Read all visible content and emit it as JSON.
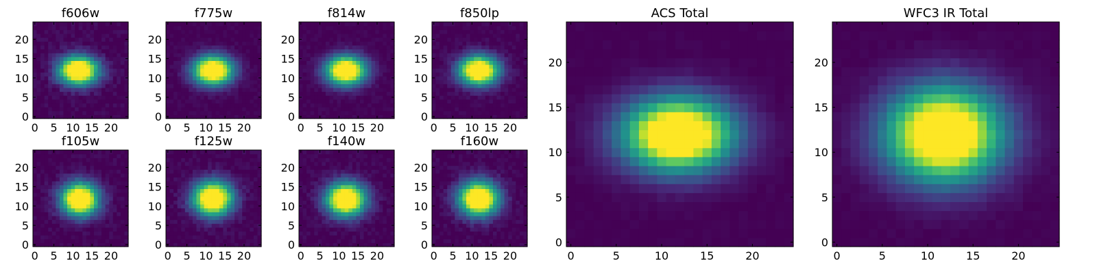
{
  "chart_data": [
    {
      "type": "heatmap",
      "title": "f606w",
      "group": "small",
      "x_range": [
        -0.5,
        24.5
      ],
      "y_range": [
        -0.5,
        24.5
      ],
      "x_ticks": [
        0,
        5,
        10,
        15,
        20
      ],
      "y_ticks": [
        0,
        5,
        10,
        15,
        20
      ],
      "center": [
        11.5,
        12.0
      ],
      "sigma": [
        3.6,
        2.6
      ],
      "noise": 0.1,
      "seed": 11
    },
    {
      "type": "heatmap",
      "title": "f775w",
      "group": "small",
      "x_range": [
        -0.5,
        24.5
      ],
      "y_range": [
        -0.5,
        24.5
      ],
      "x_ticks": [
        0,
        5,
        10,
        15,
        20
      ],
      "y_ticks": [
        0,
        5,
        10,
        15,
        20
      ],
      "center": [
        11.8,
        12.0
      ],
      "sigma": [
        3.6,
        2.6
      ],
      "noise": 0.06,
      "seed": 12
    },
    {
      "type": "heatmap",
      "title": "f814w",
      "group": "small",
      "x_range": [
        -0.5,
        24.5
      ],
      "y_range": [
        -0.5,
        24.5
      ],
      "x_ticks": [
        0,
        5,
        10,
        15,
        20
      ],
      "y_ticks": [
        0,
        5,
        10,
        15,
        20
      ],
      "center": [
        11.8,
        12.0
      ],
      "sigma": [
        3.6,
        2.6
      ],
      "noise": 0.06,
      "seed": 13
    },
    {
      "type": "heatmap",
      "title": "f850lp",
      "group": "small",
      "x_range": [
        -0.5,
        24.5
      ],
      "y_range": [
        -0.5,
        24.5
      ],
      "x_ticks": [
        0,
        5,
        10,
        15,
        20
      ],
      "y_ticks": [
        0,
        5,
        10,
        15,
        20
      ],
      "center": [
        11.8,
        12.0
      ],
      "sigma": [
        3.6,
        2.6
      ],
      "noise": 0.08,
      "seed": 14
    },
    {
      "type": "heatmap",
      "title": "f105w",
      "group": "small",
      "x_range": [
        -0.5,
        24.5
      ],
      "y_range": [
        -0.5,
        24.5
      ],
      "x_ticks": [
        0,
        5,
        10,
        15,
        20
      ],
      "y_ticks": [
        0,
        5,
        10,
        15,
        20
      ],
      "center": [
        11.8,
        11.8
      ],
      "sigma": [
        3.4,
        3.0
      ],
      "noise": 0.09,
      "seed": 21
    },
    {
      "type": "heatmap",
      "title": "f125w",
      "group": "small",
      "x_range": [
        -0.5,
        24.5
      ],
      "y_range": [
        -0.5,
        24.5
      ],
      "x_ticks": [
        0,
        5,
        10,
        15,
        20
      ],
      "y_ticks": [
        0,
        5,
        10,
        15,
        20
      ],
      "center": [
        11.8,
        12.0
      ],
      "sigma": [
        3.6,
        3.1
      ],
      "noise": 0.09,
      "seed": 22
    },
    {
      "type": "heatmap",
      "title": "f140w",
      "group": "small",
      "x_range": [
        -0.5,
        24.5
      ],
      "y_range": [
        -0.5,
        24.5
      ],
      "x_ticks": [
        0,
        5,
        10,
        15,
        20
      ],
      "y_ticks": [
        0,
        5,
        10,
        15,
        20
      ],
      "center": [
        11.8,
        11.8
      ],
      "sigma": [
        3.6,
        3.0
      ],
      "noise": 0.09,
      "seed": 23
    },
    {
      "type": "heatmap",
      "title": "f160w",
      "group": "small",
      "x_range": [
        -0.5,
        24.5
      ],
      "y_range": [
        -0.5,
        24.5
      ],
      "x_ticks": [
        0,
        5,
        10,
        15,
        20
      ],
      "y_ticks": [
        0,
        5,
        10,
        15,
        20
      ],
      "center": [
        11.8,
        12.0
      ],
      "sigma": [
        3.6,
        3.1
      ],
      "noise": 0.09,
      "seed": 24
    },
    {
      "type": "heatmap",
      "title": "ACS Total",
      "group": "large",
      "x_range": [
        -0.5,
        24.5
      ],
      "y_range": [
        -0.5,
        24.5
      ],
      "x_ticks": [
        0,
        5,
        10,
        15,
        20
      ],
      "y_ticks": [
        0,
        5,
        10,
        15,
        20
      ],
      "center": [
        11.8,
        12.0
      ],
      "sigma": [
        4.2,
        2.8
      ],
      "noise": 0.03,
      "seed": 31
    },
    {
      "type": "heatmap",
      "title": "WFC3 IR Total",
      "group": "large",
      "x_range": [
        -0.5,
        24.5
      ],
      "y_range": [
        -0.5,
        24.5
      ],
      "x_ticks": [
        0,
        5,
        10,
        15,
        20
      ],
      "y_ticks": [
        0,
        5,
        10,
        15,
        20
      ],
      "center": [
        11.8,
        12.0
      ],
      "sigma": [
        4.4,
        3.6
      ],
      "noise": 0.03,
      "seed": 32
    }
  ],
  "colormap": [
    "#440154",
    "#472c7a",
    "#3b518b",
    "#2c718e",
    "#21908d",
    "#27ad81",
    "#5cc863",
    "#aadc32",
    "#fde725"
  ]
}
